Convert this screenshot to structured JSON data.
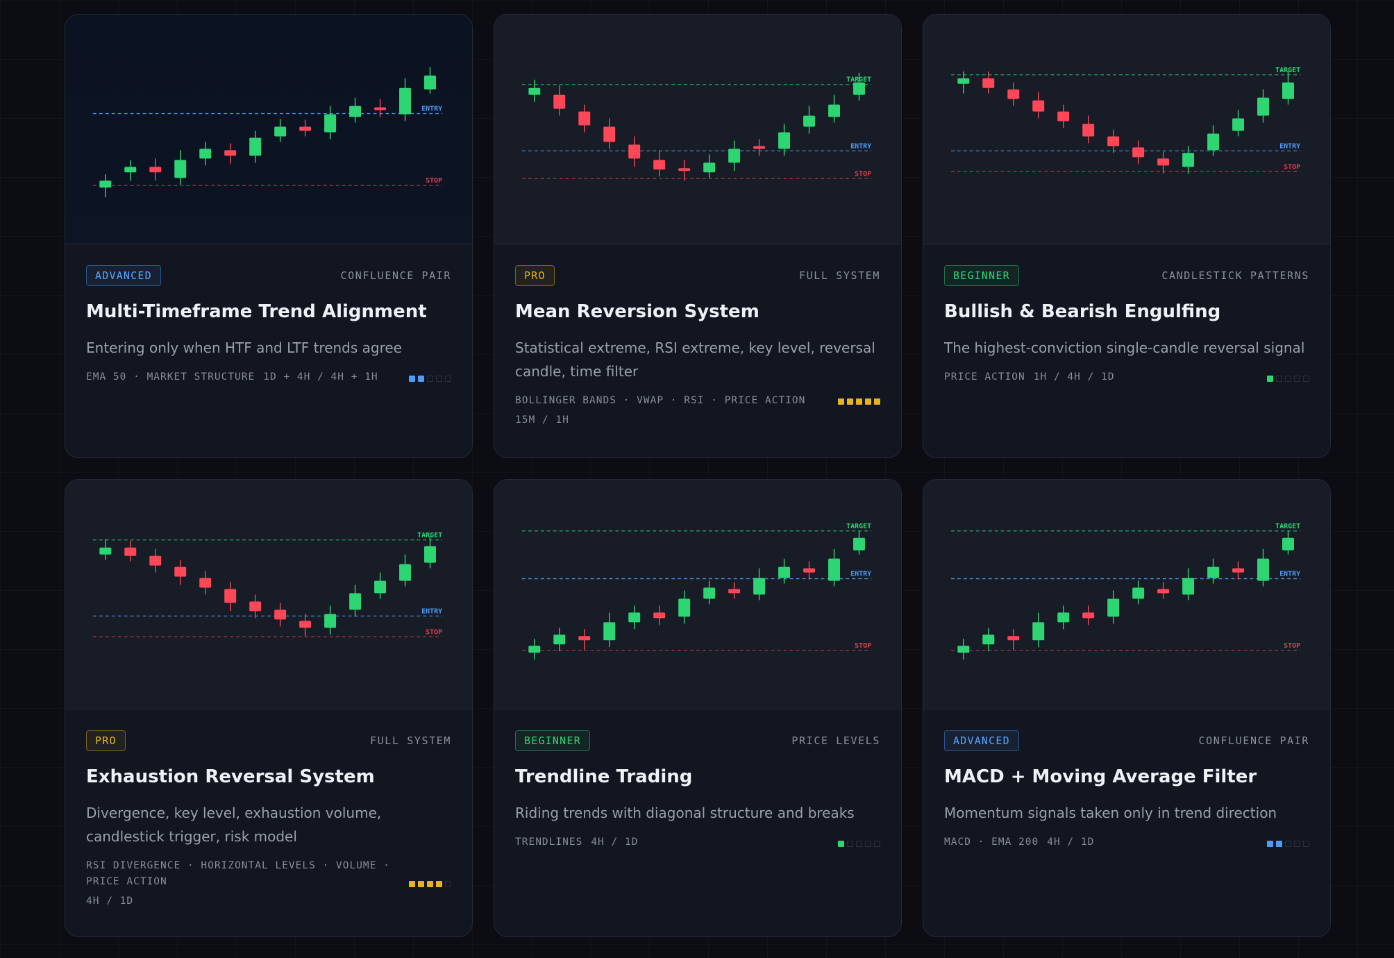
{
  "colors": {
    "bull": "#2ed573",
    "bear": "#ff4757",
    "entry": "#4f9cf5",
    "target": "#2ed573",
    "stop": "#e0414f"
  },
  "cards": [
    {
      "level": "ADVANCED",
      "category": "CONFLUENCE PAIR",
      "title": "Multi-Timeframe Trend Alignment",
      "description": "Entering only when HTF and LTF trends agree",
      "tags": "EMA 50 · MARKET STRUCTURE",
      "timeframe": "1D + 4H / 4H + 1H",
      "difficulty": 2,
      "chart_labels": {
        "target": "",
        "entry": "ENTRY",
        "stop": "STOP"
      }
    },
    {
      "level": "PRO",
      "category": "FULL SYSTEM",
      "title": "Mean Reversion System",
      "description": "Statistical extreme, RSI extreme, key level, reversal candle, time filter",
      "tags": "BOLLINGER BANDS · VWAP · RSI · PRICE ACTION",
      "timeframe": "15M / 1H",
      "difficulty": 5,
      "chart_labels": {
        "target": "TARGET",
        "entry": "ENTRY",
        "stop": "STOP"
      }
    },
    {
      "level": "BEGINNER",
      "category": "CANDLESTICK PATTERNS",
      "title": "Bullish & Bearish Engulfing",
      "description": "The highest-conviction single-candle reversal signal",
      "tags": "PRICE ACTION",
      "timeframe": "1H / 4H / 1D",
      "difficulty": 1,
      "chart_labels": {
        "target": "TARGET",
        "entry": "ENTRY",
        "stop": "STOP"
      }
    },
    {
      "level": "PRO",
      "category": "FULL SYSTEM",
      "title": "Exhaustion Reversal System",
      "description": "Divergence, key level, exhaustion volume, candlestick trigger, risk model",
      "tags": "RSI DIVERGENCE · HORIZONTAL LEVELS · VOLUME · PRICE ACTION",
      "timeframe": "4H / 1D",
      "difficulty": 4,
      "chart_labels": {
        "target": "TARGET",
        "entry": "ENTRY",
        "stop": "STOP"
      }
    },
    {
      "level": "BEGINNER",
      "category": "PRICE LEVELS",
      "title": "Trendline Trading",
      "description": "Riding trends with diagonal structure and breaks",
      "tags": "TRENDLINES",
      "timeframe": "4H / 1D",
      "difficulty": 1,
      "chart_labels": {
        "target": "TARGET",
        "entry": "ENTRY",
        "stop": "STOP"
      }
    },
    {
      "level": "ADVANCED",
      "category": "CONFLUENCE PAIR",
      "title": "MACD + Moving Average Filter",
      "description": "Momentum signals taken only in trend direction",
      "tags": "MACD · EMA 200",
      "timeframe": "4H / 1D",
      "difficulty": 2,
      "chart_labels": {
        "target": "TARGET",
        "entry": "ENTRY",
        "stop": "STOP"
      }
    }
  ]
}
